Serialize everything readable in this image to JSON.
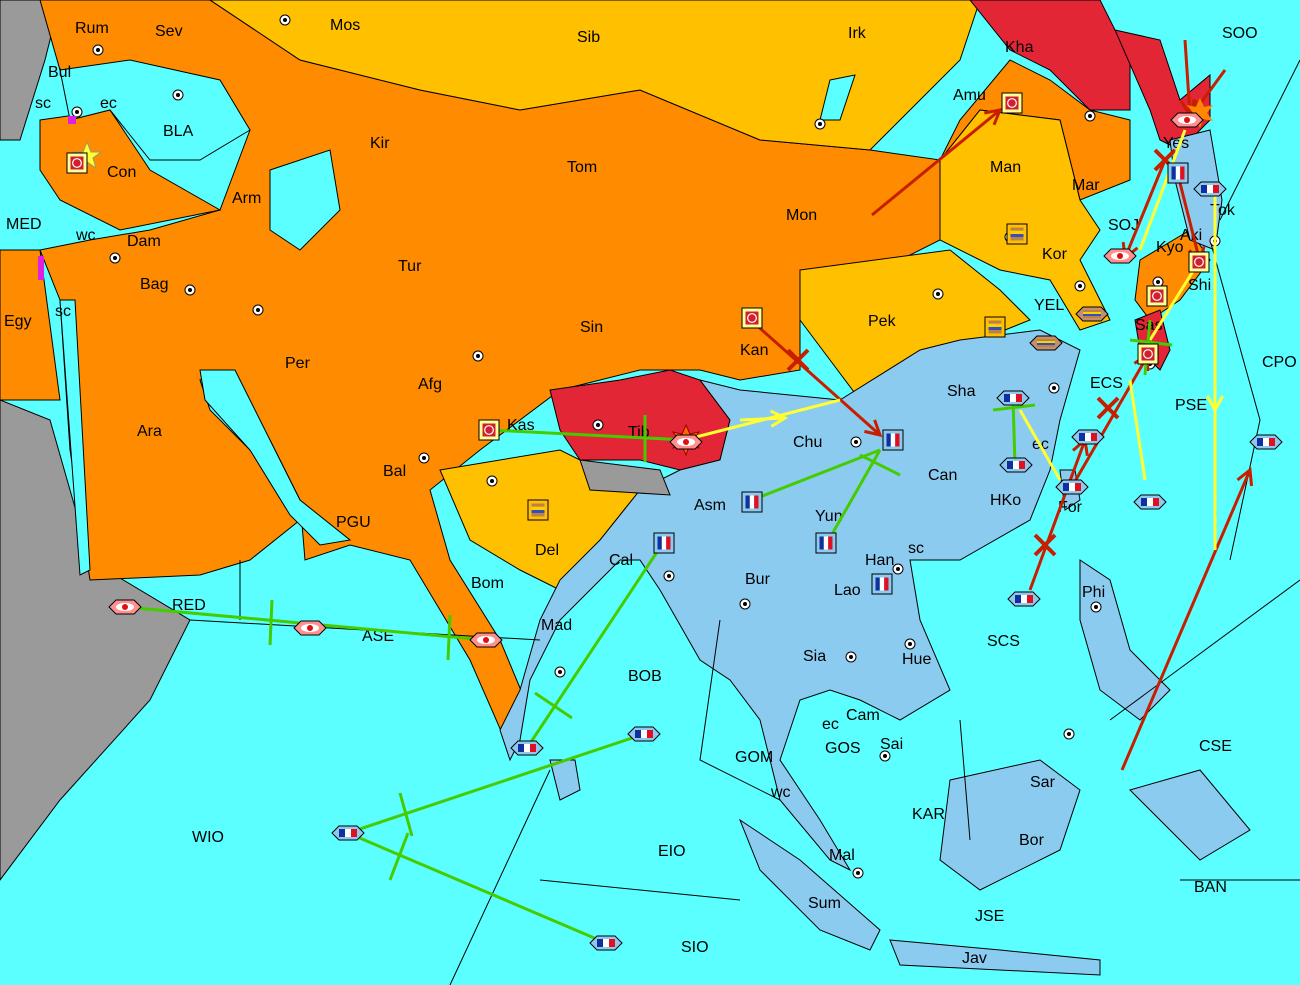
{
  "colors": {
    "sea": "#5cffff",
    "orange_power": "#ff8c00",
    "gold_power": "#ffc000",
    "red_power": "#e32636",
    "blue_power": "#8ccbf0",
    "neutral": "#9a9a9a",
    "move_arrow": "#c81e00",
    "support_line": "#ffff33",
    "convoy_line": "#44cc00"
  },
  "labels": [
    "Rum",
    "Sev",
    "Mos",
    "Sib",
    "Irk",
    "Kha",
    "SOO",
    "Bul",
    "sc",
    "ec",
    "BLA",
    "Con",
    "Amu",
    "Yes",
    "MED",
    "wc",
    "Kir",
    "Tom",
    "Man",
    "Mar",
    "Tok",
    "Arm",
    "Dam",
    "Mon",
    "SOJ",
    "Kyo",
    "Aki",
    "Bag",
    "Tur",
    "Kor",
    "Shi",
    "Egy",
    "sc",
    "YEL",
    "Sas",
    "Pek",
    "Sin",
    "Per",
    "Kan",
    "Afg",
    "CPO",
    "Sha",
    "ECS",
    "PSE",
    "Ara",
    "Kas",
    "Tib",
    "Chu",
    "ec",
    "Bal",
    "Can",
    "HKo",
    "For",
    "PGU",
    "Asm",
    "Yun",
    "Del",
    "sc",
    "Han",
    "Cal",
    "Bom",
    "Bur",
    "Lao",
    "RED",
    "ASE",
    "Mad",
    "Phi",
    "SCS",
    "Sia",
    "Hue",
    "BOB",
    "Cam",
    "ec",
    "GOS",
    "Sai",
    "GOM",
    "CSE",
    "wc",
    "Sar",
    "KAR",
    "WIO",
    "Bor",
    "EIO",
    "Mal",
    "BAN",
    "Sum",
    "JSE",
    "SIO",
    "Jav"
  ],
  "units": [
    {
      "type": "army",
      "power": "crescent"
    },
    {
      "type": "army",
      "power": "crescent"
    },
    {
      "type": "army",
      "power": "crescent"
    },
    {
      "type": "army",
      "power": "crescent"
    },
    {
      "type": "army",
      "power": "crescent"
    },
    {
      "type": "army",
      "power": "crescent"
    },
    {
      "type": "army",
      "power": "crescent"
    },
    {
      "type": "fleet",
      "power": "crescent"
    },
    {
      "type": "fleet",
      "power": "crescent"
    },
    {
      "type": "fleet",
      "power": "crescent"
    },
    {
      "type": "fleet",
      "power": "crescent"
    },
    {
      "type": "fleet",
      "power": "crescent"
    },
    {
      "type": "fleet",
      "power": "crescent"
    },
    {
      "type": "army",
      "power": "striped"
    },
    {
      "type": "army",
      "power": "striped"
    },
    {
      "type": "army",
      "power": "striped"
    },
    {
      "type": "fleet",
      "power": "striped"
    },
    {
      "type": "fleet",
      "power": "striped"
    },
    {
      "type": "army",
      "power": "tricolor"
    },
    {
      "type": "army",
      "power": "tricolor"
    },
    {
      "type": "army",
      "power": "tricolor"
    },
    {
      "type": "army",
      "power": "tricolor"
    },
    {
      "type": "army",
      "power": "tricolor"
    },
    {
      "type": "army",
      "power": "tricolor"
    },
    {
      "type": "fleet",
      "power": "tricolor"
    },
    {
      "type": "fleet",
      "power": "tricolor"
    },
    {
      "type": "fleet",
      "power": "tricolor"
    },
    {
      "type": "fleet",
      "power": "tricolor"
    },
    {
      "type": "fleet",
      "power": "tricolor"
    },
    {
      "type": "fleet",
      "power": "tricolor"
    },
    {
      "type": "fleet",
      "power": "tricolor"
    },
    {
      "type": "fleet",
      "power": "tricolor"
    },
    {
      "type": "fleet",
      "power": "tricolor"
    },
    {
      "type": "fleet",
      "power": "tricolor"
    },
    {
      "type": "fleet",
      "power": "tricolor"
    },
    {
      "type": "fleet",
      "power": "tricolor"
    }
  ],
  "icons": {
    "supply_center": "supply-center-dot-icon",
    "capital": "star-icon",
    "dislodged": "explosion-icon",
    "failed_order": "cross-icon"
  }
}
